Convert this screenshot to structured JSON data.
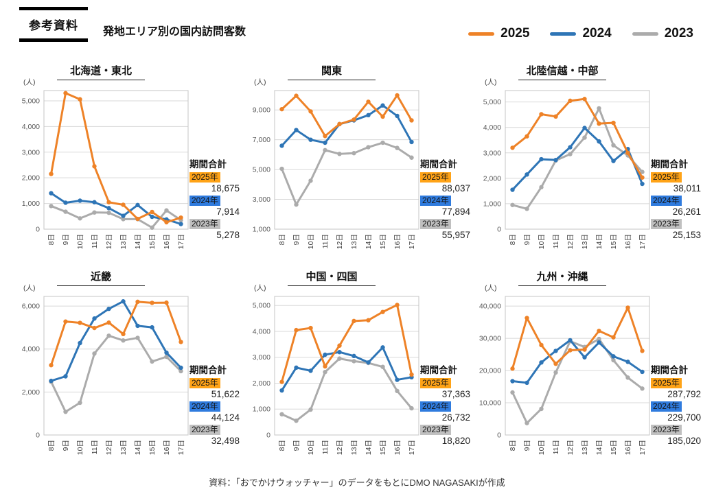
{
  "header": {
    "badge": "参考資料",
    "title": "発地エリア別の国内訪問客数"
  },
  "legend": {
    "items": [
      {
        "label": "2025",
        "color": "#EE8227"
      },
      {
        "label": "2024",
        "color": "#2E75B6"
      },
      {
        "label": "2023",
        "color": "#ABABAB"
      }
    ]
  },
  "unit_label": "(人)",
  "totals_label": "期間合計",
  "x_labels": [
    "8日",
    "9日",
    "10日",
    "11日",
    "12日",
    "13日",
    "14日",
    "15日",
    "16日",
    "17日"
  ],
  "source": "資料：「おでかけウォッチャー」のデータをもとにDMO NAGASAKIが作成",
  "series_meta": [
    {
      "name": "2025",
      "line_color": "#EE8227",
      "chip_color": "#FFA317"
    },
    {
      "name": "2024",
      "line_color": "#2E75B6",
      "chip_color": "#2F7BDE"
    },
    {
      "name": "2023",
      "line_color": "#ABABAB",
      "chip_color": "#C0C0C0"
    }
  ],
  "chart_data": [
    {
      "type": "line",
      "title": "北海道・東北",
      "ylabel": "(人)",
      "ylim": [
        0,
        5400
      ],
      "yticks": [
        0,
        1000,
        2000,
        3000,
        4000,
        5000
      ],
      "categories": [
        "8日",
        "9日",
        "10日",
        "11日",
        "12日",
        "13日",
        "14日",
        "15日",
        "16日",
        "17日"
      ],
      "series": [
        {
          "name": "2025",
          "values": [
            2150,
            5300,
            5060,
            2450,
            1050,
            950,
            400,
            670,
            270,
            450
          ]
        },
        {
          "name": "2024",
          "values": [
            1400,
            1030,
            1110,
            1050,
            820,
            520,
            940,
            480,
            380,
            200
          ]
        },
        {
          "name": "2023",
          "values": [
            900,
            680,
            420,
            650,
            640,
            390,
            390,
            60,
            730,
            350
          ]
        }
      ],
      "totals": [
        {
          "year": "2025年",
          "total": "18,675"
        },
        {
          "year": "2024年",
          "total": "7,914"
        },
        {
          "year": "2023年",
          "total": "5,278"
        }
      ]
    },
    {
      "type": "line",
      "title": "関東",
      "ylabel": "(人)",
      "ylim": [
        1000,
        10300
      ],
      "yticks": [
        1000,
        3000,
        5000,
        7000,
        9000
      ],
      "categories": [
        "8日",
        "9日",
        "10日",
        "11日",
        "12日",
        "13日",
        "14日",
        "15日",
        "16日",
        "17日"
      ],
      "series": [
        {
          "name": "2025",
          "values": [
            9050,
            9950,
            8900,
            7250,
            8050,
            8350,
            9550,
            8550,
            9980,
            8300
          ]
        },
        {
          "name": "2024",
          "values": [
            6600,
            7650,
            7000,
            6800,
            8050,
            8300,
            8650,
            9300,
            8600,
            6850
          ]
        },
        {
          "name": "2023",
          "values": [
            5050,
            2650,
            4250,
            6300,
            6050,
            6100,
            6500,
            6800,
            6450,
            5800
          ]
        }
      ],
      "totals": [
        {
          "year": "2025年",
          "total": "88,037"
        },
        {
          "year": "2024年",
          "total": "77,894"
        },
        {
          "year": "2023年",
          "total": "55,957"
        }
      ]
    },
    {
      "type": "line",
      "title": "北陸信越・中部",
      "ylabel": "(人)",
      "ylim": [
        0,
        5450
      ],
      "yticks": [
        0,
        1000,
        2000,
        3000,
        4000,
        5000
      ],
      "categories": [
        "8日",
        "9日",
        "10日",
        "11日",
        "12日",
        "13日",
        "14日",
        "15日",
        "16日",
        "17日"
      ],
      "series": [
        {
          "name": "2025",
          "values": [
            3200,
            3650,
            4520,
            4430,
            5050,
            5120,
            4150,
            4180,
            3000,
            2030
          ]
        },
        {
          "name": "2024",
          "values": [
            1550,
            2150,
            2750,
            2720,
            3220,
            3980,
            3450,
            2680,
            3150,
            1780
          ]
        },
        {
          "name": "2023",
          "values": [
            950,
            800,
            1650,
            2700,
            2950,
            3600,
            4750,
            3300,
            2900,
            2250
          ]
        }
      ],
      "totals": [
        {
          "year": "2025年",
          "total": "38,011"
        },
        {
          "year": "2024年",
          "total": "26,261"
        },
        {
          "year": "2023年",
          "total": "25,153"
        }
      ]
    },
    {
      "type": "line",
      "title": "近畿",
      "ylabel": "(人)",
      "ylim": [
        0,
        6450
      ],
      "yticks": [
        0,
        2000,
        4000,
        6000
      ],
      "categories": [
        "8日",
        "9日",
        "10日",
        "11日",
        "12日",
        "13日",
        "14日",
        "15日",
        "16日",
        "17日"
      ],
      "series": [
        {
          "name": "2025",
          "values": [
            3250,
            5280,
            5220,
            4980,
            5230,
            4700,
            6200,
            6150,
            6160,
            4330
          ]
        },
        {
          "name": "2024",
          "values": [
            2520,
            2730,
            4280,
            5420,
            5870,
            6220,
            5080,
            5010,
            3830,
            3130
          ]
        },
        {
          "name": "2023",
          "values": [
            2480,
            1080,
            1500,
            3790,
            4620,
            4400,
            4520,
            3420,
            3640,
            2970
          ]
        }
      ],
      "totals": [
        {
          "year": "2025年",
          "total": "51,622"
        },
        {
          "year": "2024年",
          "total": "44,124"
        },
        {
          "year": "2023年",
          "total": "32,498"
        }
      ]
    },
    {
      "type": "line",
      "title": "中国・四国",
      "ylabel": "(人)",
      "ylim": [
        0,
        5350
      ],
      "yticks": [
        0,
        1000,
        2000,
        3000,
        4000,
        5000
      ],
      "categories": [
        "8日",
        "9日",
        "10日",
        "11日",
        "12日",
        "13日",
        "14日",
        "15日",
        "16日",
        "17日"
      ],
      "series": [
        {
          "name": "2025",
          "values": [
            2050,
            4050,
            4130,
            2650,
            3450,
            4400,
            4430,
            4750,
            5020,
            2330
          ]
        },
        {
          "name": "2024",
          "values": [
            1720,
            2600,
            2480,
            3100,
            3200,
            3050,
            2800,
            3380,
            2130,
            2230
          ]
        },
        {
          "name": "2023",
          "values": [
            800,
            550,
            980,
            2430,
            2950,
            2850,
            2780,
            2630,
            1700,
            1030
          ]
        }
      ],
      "totals": [
        {
          "year": "2025年",
          "total": "37,363"
        },
        {
          "year": "2024年",
          "total": "26,732"
        },
        {
          "year": "2023年",
          "total": "18,820"
        }
      ]
    },
    {
      "type": "line",
      "title": "九州・沖縄",
      "ylabel": "(人)",
      "ylim": [
        0,
        43000
      ],
      "yticks": [
        0,
        10000,
        20000,
        30000,
        40000
      ],
      "categories": [
        "8日",
        "9日",
        "10日",
        "11日",
        "12日",
        "13日",
        "14日",
        "15日",
        "16日",
        "17日"
      ],
      "series": [
        {
          "name": "2025",
          "values": [
            20600,
            36300,
            27900,
            22100,
            26300,
            26500,
            32300,
            30300,
            39500,
            26100
          ]
        },
        {
          "name": "2024",
          "values": [
            16700,
            16200,
            22500,
            26100,
            29400,
            24100,
            28700,
            24400,
            22700,
            19600
          ]
        },
        {
          "name": "2023",
          "values": [
            13200,
            3700,
            8100,
            19400,
            29100,
            27300,
            29800,
            23200,
            17800,
            14400
          ]
        }
      ],
      "totals": [
        {
          "year": "2025年",
          "total": "287,792"
        },
        {
          "year": "2024年",
          "total": "229,700"
        },
        {
          "year": "2023年",
          "total": "185,020"
        }
      ]
    }
  ]
}
